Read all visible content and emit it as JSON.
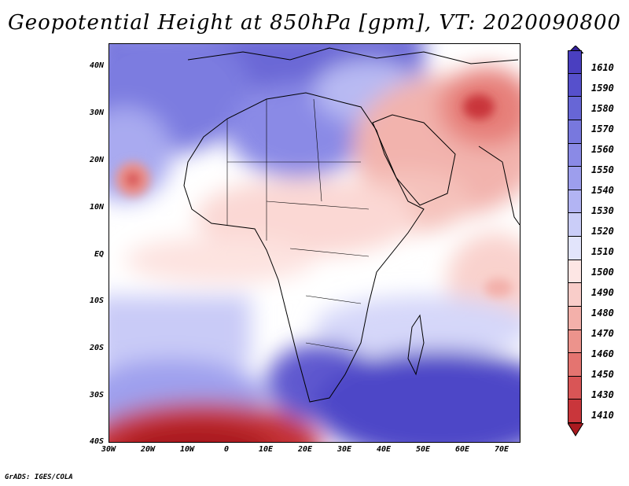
{
  "title": "Geopotential Height at 850hPa [gpm], VT: 2020090800",
  "footer": "GrADS: IGES/COLA",
  "map": {
    "variable": "Geopotential Height 850hPa",
    "units": "gpm",
    "lon_range": [
      -30,
      75
    ],
    "lat_range": [
      -40,
      45
    ],
    "lat_ticks": [
      "40N",
      "30N",
      "20N",
      "10N",
      "EQ",
      "10S",
      "20S",
      "30S",
      "40S"
    ],
    "lon_ticks": [
      "30W",
      "20W",
      "10W",
      "0",
      "10E",
      "20E",
      "30E",
      "40E",
      "50E",
      "60E",
      "70E"
    ]
  },
  "colorbar": {
    "labels": [
      "1610",
      "1590",
      "1580",
      "1570",
      "1560",
      "1550",
      "1540",
      "1530",
      "1520",
      "1510",
      "1500",
      "1490",
      "1480",
      "1470",
      "1460",
      "1450",
      "1430",
      "1410"
    ],
    "colors": [
      "#35229a",
      "#4a3fc0",
      "#5650cc",
      "#6766d6",
      "#7878de",
      "#8a8ae6",
      "#9d9eed",
      "#b2b4f3",
      "#cacdf8",
      "#e2e4fb",
      "#fde6e4",
      "#f9cdc9",
      "#f3b0aa",
      "#ec938c",
      "#e47470",
      "#d95556",
      "#c9363b",
      "#aa1a20"
    ]
  },
  "colors": {
    "low_extreme": "#a8181e",
    "high_extreme": "#35229a",
    "neutral": "#ffffff",
    "border": "#000000"
  }
}
